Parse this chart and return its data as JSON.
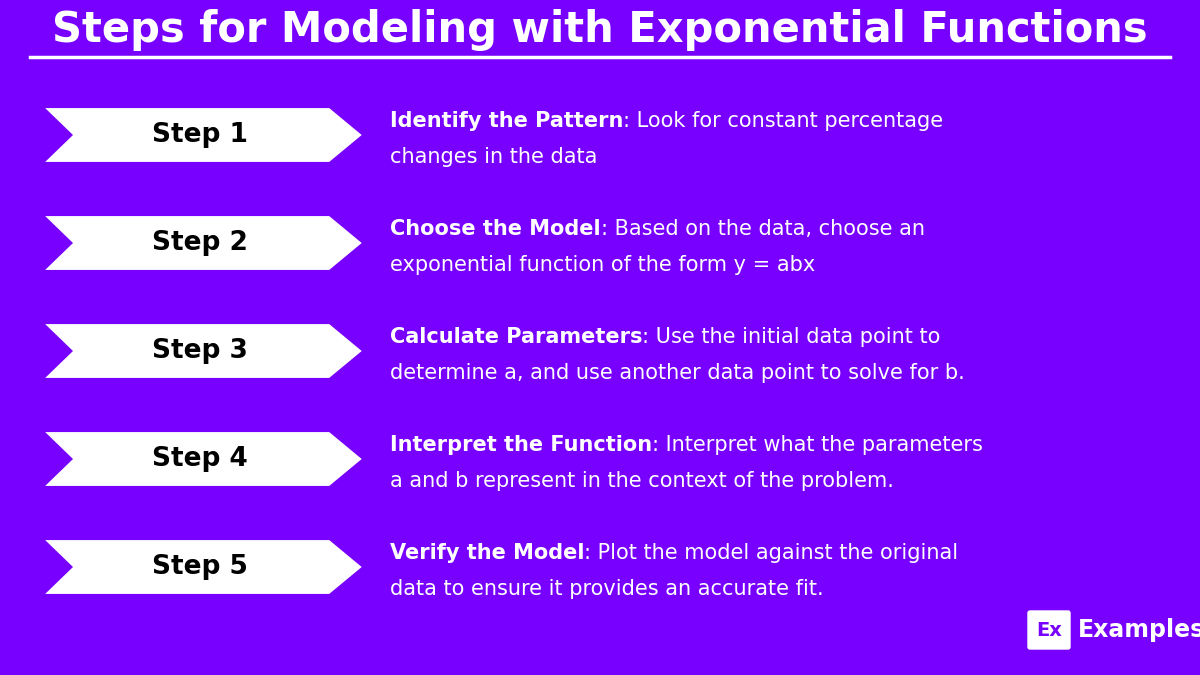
{
  "title": "Steps for Modeling with Exponential Functions",
  "bg_color": "#7700FF",
  "arrow_fill": "#FFFFFF",
  "arrow_text_color": "#000000",
  "desc_text_color": "#FFFFFF",
  "steps": [
    {
      "label": "Step 1",
      "bold_text": "Identify the Pattern",
      "rest_line1": ": Look for constant percentage",
      "rest_line2": "changes in the data"
    },
    {
      "label": "Step 2",
      "bold_text": "Choose the Model",
      "rest_line1": ": Based on the data, choose an",
      "rest_line2": "exponential function of the form y = abx"
    },
    {
      "label": "Step 3",
      "bold_text": "Calculate Parameters",
      "rest_line1": ": Use the initial data point to",
      "rest_line2": "determine a, and use another data point to solve for b."
    },
    {
      "label": "Step 4",
      "bold_text": "Interpret the Function",
      "rest_line1": ": Interpret what the parameters",
      "rest_line2": "a and b represent in the context of the problem."
    },
    {
      "label": "Step 5",
      "bold_text": "Verify the Model",
      "rest_line1": ": Plot the model against the original",
      "rest_line2": "data to ensure it provides an accurate fit."
    }
  ],
  "logo_box_color": "#FFFFFF",
  "logo_text_color": "#7700FF",
  "logo_label": "Ex",
  "logo_site": "Examples.com",
  "fig_width": 12.0,
  "fig_height": 6.75,
  "dpi": 100
}
